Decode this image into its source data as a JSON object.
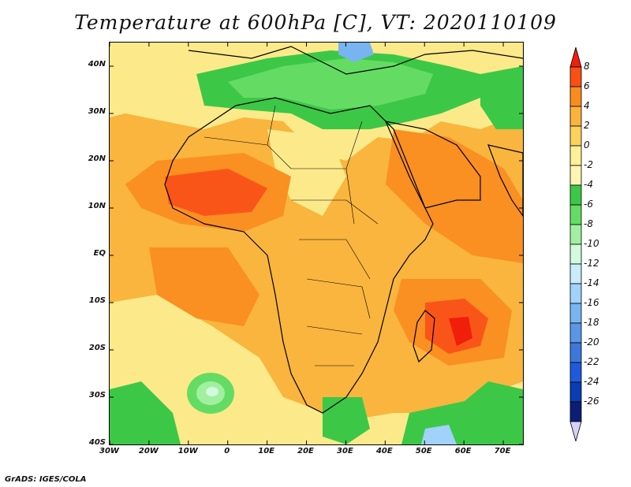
{
  "title": "Temperature at 600hPa [C], VT: 2020110109",
  "credit": "GrADS: IGES/COLA",
  "map": {
    "lon_range": [
      -30,
      75
    ],
    "lat_range": [
      -40,
      45
    ],
    "lon_ticks": [
      {
        "value": -30,
        "label": "30W"
      },
      {
        "value": -20,
        "label": "20W"
      },
      {
        "value": -10,
        "label": "10W"
      },
      {
        "value": 0,
        "label": "0"
      },
      {
        "value": 10,
        "label": "10E"
      },
      {
        "value": 20,
        "label": "20E"
      },
      {
        "value": 30,
        "label": "30E"
      },
      {
        "value": 40,
        "label": "40E"
      },
      {
        "value": 50,
        "label": "50E"
      },
      {
        "value": 60,
        "label": "60E"
      },
      {
        "value": 70,
        "label": "70E"
      }
    ],
    "lat_ticks": [
      {
        "value": 40,
        "label": "40N"
      },
      {
        "value": 30,
        "label": "30N"
      },
      {
        "value": 20,
        "label": "20N"
      },
      {
        "value": 10,
        "label": "10N"
      },
      {
        "value": 0,
        "label": "EQ"
      },
      {
        "value": -10,
        "label": "10S"
      },
      {
        "value": -20,
        "label": "20S"
      },
      {
        "value": -30,
        "label": "30S"
      },
      {
        "value": -40,
        "label": "40S"
      }
    ]
  },
  "colorbar": {
    "labels": [
      "8",
      "6",
      "4",
      "2",
      "0",
      "-2",
      "-4",
      "-6",
      "-8",
      "-10",
      "-12",
      "-14",
      "-16",
      "-18",
      "-20",
      "-22",
      "-24",
      "-26"
    ],
    "colors": [
      "#f01e0a",
      "#fa5014",
      "#fa8c1e",
      "#fab43c",
      "#fcd25a",
      "#fdf096",
      "#fdf5b4",
      "#3cc846",
      "#64dc64",
      "#a0f0a0",
      "#d2fadc",
      "#c8ecfa",
      "#a0d2fa",
      "#78b4f0",
      "#5a96e6",
      "#3c78dc",
      "#1e5adc",
      "#0a3cb4",
      "#0a1e78",
      "#d2d2fa"
    ]
  }
}
